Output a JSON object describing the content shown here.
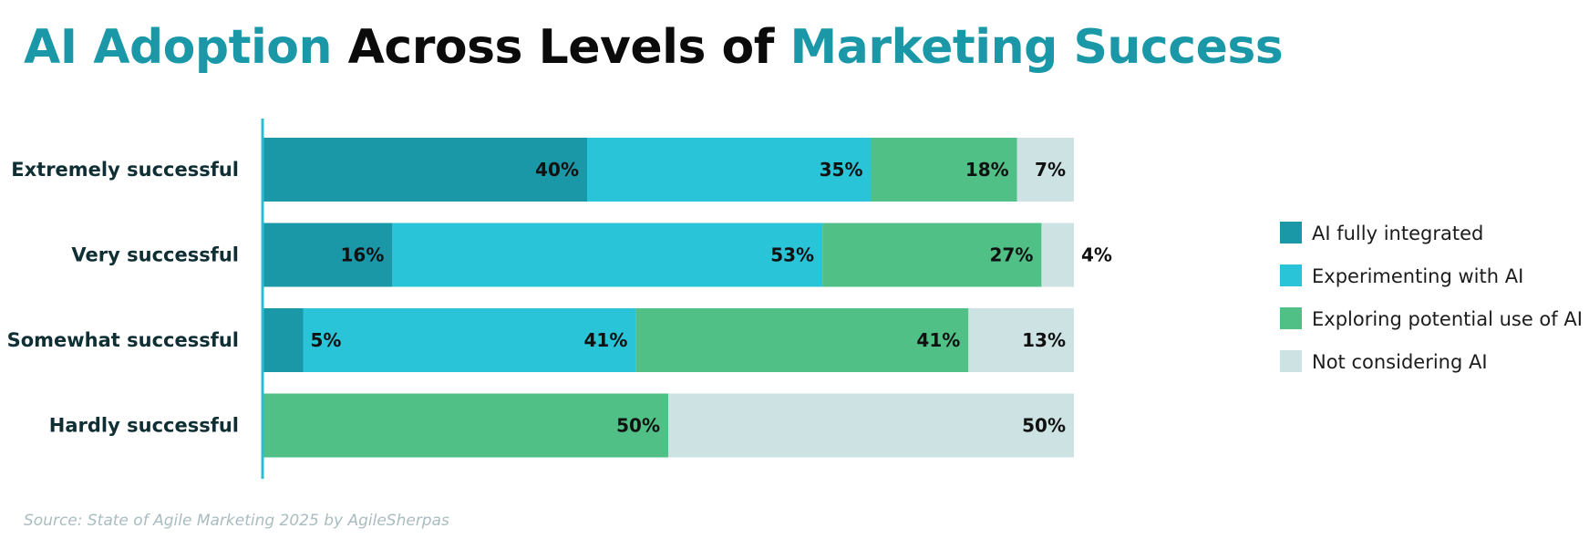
{
  "title": {
    "part1": "AI Adoption",
    "part2": " Across Levels of ",
    "part3": "Marketing Success"
  },
  "source": "Source: State of Agile Marketing 2025 by AgileSherpas",
  "colors": {
    "title_accent": "#1a98a8",
    "axis": "#27c0d3"
  },
  "chart_data": {
    "type": "bar",
    "orientation": "horizontal",
    "stacked": true,
    "categories": [
      "Extremely successful",
      "Very successful",
      "Somewhat successful",
      "Hardly successful"
    ],
    "series": [
      {
        "name": "AI fully integrated",
        "color": "#1a98a8",
        "values": [
          40,
          16,
          5,
          0
        ]
      },
      {
        "name": "Experimenting with AI",
        "color": "#2ac4d8",
        "values": [
          35,
          53,
          41,
          0
        ]
      },
      {
        "name": "Exploring potential use of AI",
        "color": "#50c087",
        "values": [
          18,
          27,
          41,
          50
        ]
      },
      {
        "name": "Not considering AI",
        "color": "#cde2e3",
        "values": [
          7,
          4,
          13,
          50
        ]
      }
    ],
    "value_suffix": "%",
    "xlim": [
      0,
      100
    ],
    "legend_position": "right",
    "grid": false
  }
}
